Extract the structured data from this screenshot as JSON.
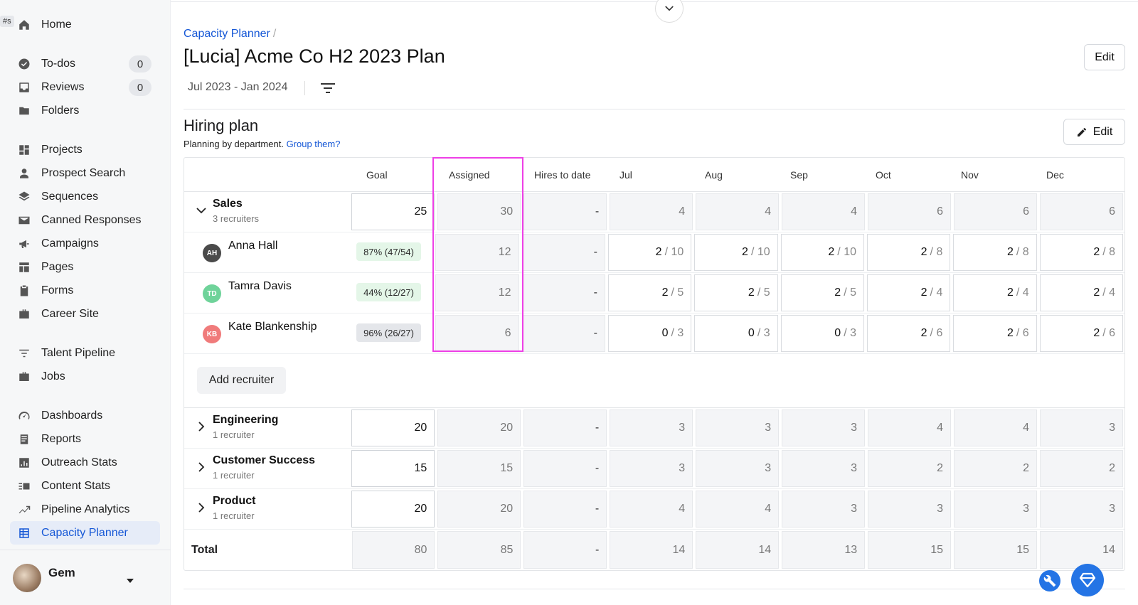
{
  "sidebar": {
    "tag": "#s",
    "groups": [
      [
        {
          "label": "Home",
          "icon": "home-icon"
        }
      ],
      [
        {
          "label": "To-dos",
          "icon": "check-circle-icon",
          "badge": "0"
        },
        {
          "label": "Reviews",
          "icon": "inbox-icon",
          "badge": "0"
        },
        {
          "label": "Folders",
          "icon": "folder-icon"
        }
      ],
      [
        {
          "label": "Projects",
          "icon": "grid-icon"
        },
        {
          "label": "Prospect Search",
          "icon": "person-icon"
        },
        {
          "label": "Sequences",
          "icon": "layers-icon"
        },
        {
          "label": "Canned Responses",
          "icon": "mail-icon"
        },
        {
          "label": "Campaigns",
          "icon": "megaphone-icon"
        },
        {
          "label": "Pages",
          "icon": "pages-icon"
        },
        {
          "label": "Forms",
          "icon": "clipboard-icon"
        },
        {
          "label": "Career Site",
          "icon": "briefcase-icon"
        }
      ],
      [
        {
          "label": "Talent Pipeline",
          "icon": "filter-icon"
        },
        {
          "label": "Jobs",
          "icon": "briefcase-icon"
        }
      ],
      [
        {
          "label": "Dashboards",
          "icon": "gauge-icon"
        },
        {
          "label": "Reports",
          "icon": "report-icon"
        },
        {
          "label": "Outreach Stats",
          "icon": "bar-chart-icon"
        },
        {
          "label": "Content Stats",
          "icon": "content-icon"
        },
        {
          "label": "Pipeline Analytics",
          "icon": "trend-icon"
        },
        {
          "label": "Capacity Planner",
          "icon": "planner-icon",
          "active": true
        }
      ]
    ],
    "user": {
      "name": "Gem"
    }
  },
  "header": {
    "breadcrumb": "Capacity Planner",
    "breadcrumb_sep": "/",
    "title": "[Lucia] Acme Co H2 2023 Plan",
    "date_range": "Jul 2023 - Jan 2024",
    "edit_label": "Edit"
  },
  "section": {
    "title": "Hiring plan",
    "subtitle": "Planning by department.",
    "group_link": "Group them?",
    "edit_label": "Edit"
  },
  "table": {
    "columns": [
      "",
      "Goal",
      "Assigned",
      "Hires to date",
      "Jul",
      "Aug",
      "Sep",
      "Oct",
      "Nov",
      "Dec"
    ],
    "sales": {
      "name": "Sales",
      "sub": "3 recruiters",
      "goal": "25",
      "assigned": "30",
      "hires": "-",
      "months": [
        "4",
        "4",
        "4",
        "6",
        "6",
        "6"
      ],
      "recruiters": [
        {
          "initials": "AH",
          "name": "Anna Hall",
          "color": "#4a4a4a",
          "pill": "87% (47/54)",
          "pill_style": "green",
          "assigned": "12",
          "hires": "-",
          "months": [
            [
              "2",
              "/ 10"
            ],
            [
              "2",
              "/ 10"
            ],
            [
              "2",
              "/ 10"
            ],
            [
              "2",
              "/ 8"
            ],
            [
              "2",
              "/ 8"
            ],
            [
              "2",
              "/ 8"
            ]
          ]
        },
        {
          "initials": "TD",
          "name": "Tamra Davis",
          "color": "#6fd39a",
          "pill": "44% (12/27)",
          "pill_style": "green",
          "assigned": "12",
          "hires": "-",
          "months": [
            [
              "2",
              "/ 5"
            ],
            [
              "2",
              "/ 5"
            ],
            [
              "2",
              "/ 5"
            ],
            [
              "2",
              "/ 4"
            ],
            [
              "2",
              "/ 4"
            ],
            [
              "2",
              "/ 4"
            ]
          ]
        },
        {
          "initials": "KB",
          "name": "Kate Blankenship",
          "color": "#f07b7b",
          "pill": "96% (26/27)",
          "pill_style": "gray",
          "assigned": "6",
          "hires": "-",
          "months": [
            [
              "0",
              "/ 3"
            ],
            [
              "0",
              "/ 3"
            ],
            [
              "0",
              "/ 3"
            ],
            [
              "2",
              "/ 6"
            ],
            [
              "2",
              "/ 6"
            ],
            [
              "2",
              "/ 6"
            ]
          ]
        }
      ],
      "add_recruiter": "Add recruiter"
    },
    "departments": [
      {
        "name": "Engineering",
        "sub": "1 recruiter",
        "goal": "20",
        "assigned": "20",
        "hires": "-",
        "months": [
          "3",
          "3",
          "3",
          "4",
          "4",
          "3"
        ]
      },
      {
        "name": "Customer Success",
        "sub": "1 recruiter",
        "goal": "15",
        "assigned": "15",
        "hires": "-",
        "months": [
          "3",
          "3",
          "3",
          "2",
          "2",
          "2"
        ]
      },
      {
        "name": "Product",
        "sub": "1 recruiter",
        "goal": "20",
        "assigned": "20",
        "hires": "-",
        "months": [
          "4",
          "4",
          "3",
          "3",
          "3",
          "3"
        ]
      }
    ],
    "total": {
      "label": "Total",
      "goal": "80",
      "assigned": "85",
      "hires": "-",
      "months": [
        "14",
        "14",
        "13",
        "15",
        "15",
        "14"
      ]
    }
  },
  "colors": {
    "accent": "#1557d6",
    "highlight": "#ee3fe6",
    "fab": "#2474e5"
  }
}
